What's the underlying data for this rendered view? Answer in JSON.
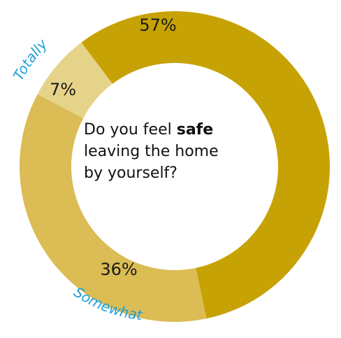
{
  "chart_data": {
    "type": "pie",
    "variant": "donut",
    "title": "",
    "question": {
      "prefix": "Do you feel ",
      "emphasis": "safe",
      "line2": "leaving the home",
      "line3": "by yourself?"
    },
    "slices": [
      {
        "value": 57,
        "label": "57%",
        "color": "#c7a205",
        "arc_label": ""
      },
      {
        "value": 36,
        "label": "36%",
        "color": "#dbbc55",
        "arc_label": "Somewhat"
      },
      {
        "value": 7,
        "label": "7%",
        "color": "#e6d38a",
        "arc_label": "Totally"
      }
    ],
    "label_color": "#1f9fd8"
  }
}
